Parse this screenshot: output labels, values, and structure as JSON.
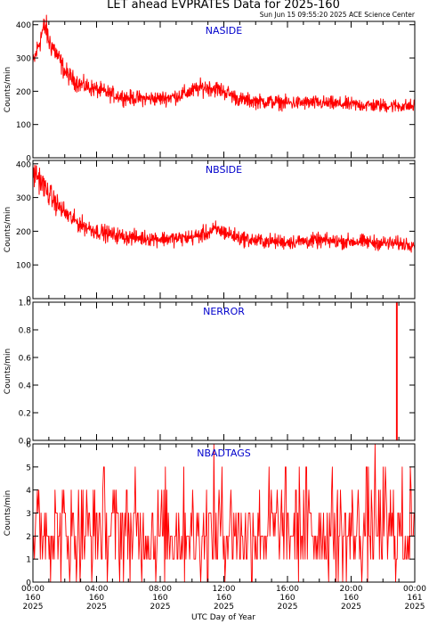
{
  "title": "LET ahead EVPRATES Data for 2025-160",
  "subtitle": "Sun Jun 15 09:55:20 2025 ACE Science Center",
  "xlabel": "UTC Day of Year",
  "x_ticks": [
    {
      "time": "00:00",
      "day": "160",
      "year": "2025"
    },
    {
      "time": "04:00",
      "day": "160",
      "year": "2025"
    },
    {
      "time": "08:00",
      "day": "160",
      "year": "2025"
    },
    {
      "time": "12:00",
      "day": "160",
      "year": "2025"
    },
    {
      "time": "16:00",
      "day": "160",
      "year": "2025"
    },
    {
      "time": "20:00",
      "day": "160",
      "year": "2025"
    },
    {
      "time": "00:00",
      "day": "161",
      "year": "2025"
    }
  ],
  "series_color": "#ff0000",
  "panel_label_color": "#0000cc",
  "chart_data": [
    {
      "type": "line",
      "title": "NASIDE",
      "xlabel": "",
      "ylabel": "Counts/min",
      "x_unit": "hours UTC",
      "xlim": [
        0,
        24
      ],
      "ylim": [
        0,
        410
      ],
      "y_ticks": [
        0,
        100,
        200,
        300,
        400
      ],
      "grid": false,
      "x": [
        0,
        0.3,
        0.6,
        0.8,
        1,
        1.3,
        1.6,
        2,
        2.5,
        3,
        4,
        5,
        6,
        7,
        8,
        9,
        10,
        10.5,
        11,
        11.5,
        12,
        12.5,
        13,
        14,
        15,
        16,
        17,
        18,
        19,
        20,
        21,
        22,
        23,
        24
      ],
      "values": [
        280,
        330,
        380,
        395,
        350,
        330,
        300,
        260,
        235,
        220,
        205,
        190,
        180,
        178,
        178,
        185,
        200,
        210,
        212,
        208,
        200,
        188,
        175,
        170,
        168,
        165,
        165,
        165,
        162,
        160,
        158,
        157,
        156,
        155
      ]
    },
    {
      "type": "line",
      "title": "NBSIDE",
      "xlabel": "",
      "ylabel": "Counts/min",
      "x_unit": "hours UTC",
      "xlim": [
        0,
        24
      ],
      "ylim": [
        0,
        410
      ],
      "y_ticks": [
        0,
        100,
        200,
        300,
        400
      ],
      "grid": false,
      "x": [
        0,
        0.3,
        0.6,
        1,
        1.5,
        2,
        2.5,
        3,
        4,
        5,
        6,
        7,
        8,
        9,
        10,
        11,
        11.5,
        12,
        13,
        14,
        15,
        16,
        17,
        18,
        19,
        20,
        21,
        22,
        23,
        24
      ],
      "values": [
        370,
        365,
        340,
        310,
        280,
        255,
        235,
        220,
        200,
        190,
        182,
        180,
        178,
        178,
        182,
        195,
        205,
        198,
        180,
        172,
        170,
        168,
        170,
        172,
        170,
        170,
        168,
        165,
        163,
        162
      ]
    },
    {
      "type": "line",
      "title": "NERROR",
      "xlabel": "",
      "ylabel": "Counts/min",
      "x_unit": "hours UTC",
      "xlim": [
        0,
        24
      ],
      "ylim": [
        0,
        1
      ],
      "y_ticks": [
        0.0,
        0.2,
        0.4,
        0.6,
        0.8,
        1.0
      ],
      "grid": false,
      "x": [
        0,
        22.85,
        22.85,
        22.9,
        22.9,
        24
      ],
      "values": [
        0,
        0,
        1,
        1,
        0,
        0
      ]
    },
    {
      "type": "line",
      "title": "NBADTAGS",
      "xlabel": "",
      "ylabel": "Counts/min",
      "x_unit": "hours UTC",
      "xlim": [
        0,
        24
      ],
      "ylim": [
        0,
        6
      ],
      "y_ticks": [
        0,
        1,
        2,
        3,
        4,
        5,
        6
      ],
      "grid": false,
      "x": [
        0,
        4,
        8,
        12,
        16,
        20,
        24
      ],
      "values": [
        2,
        2,
        2,
        2,
        2,
        2,
        2
      ]
    }
  ]
}
